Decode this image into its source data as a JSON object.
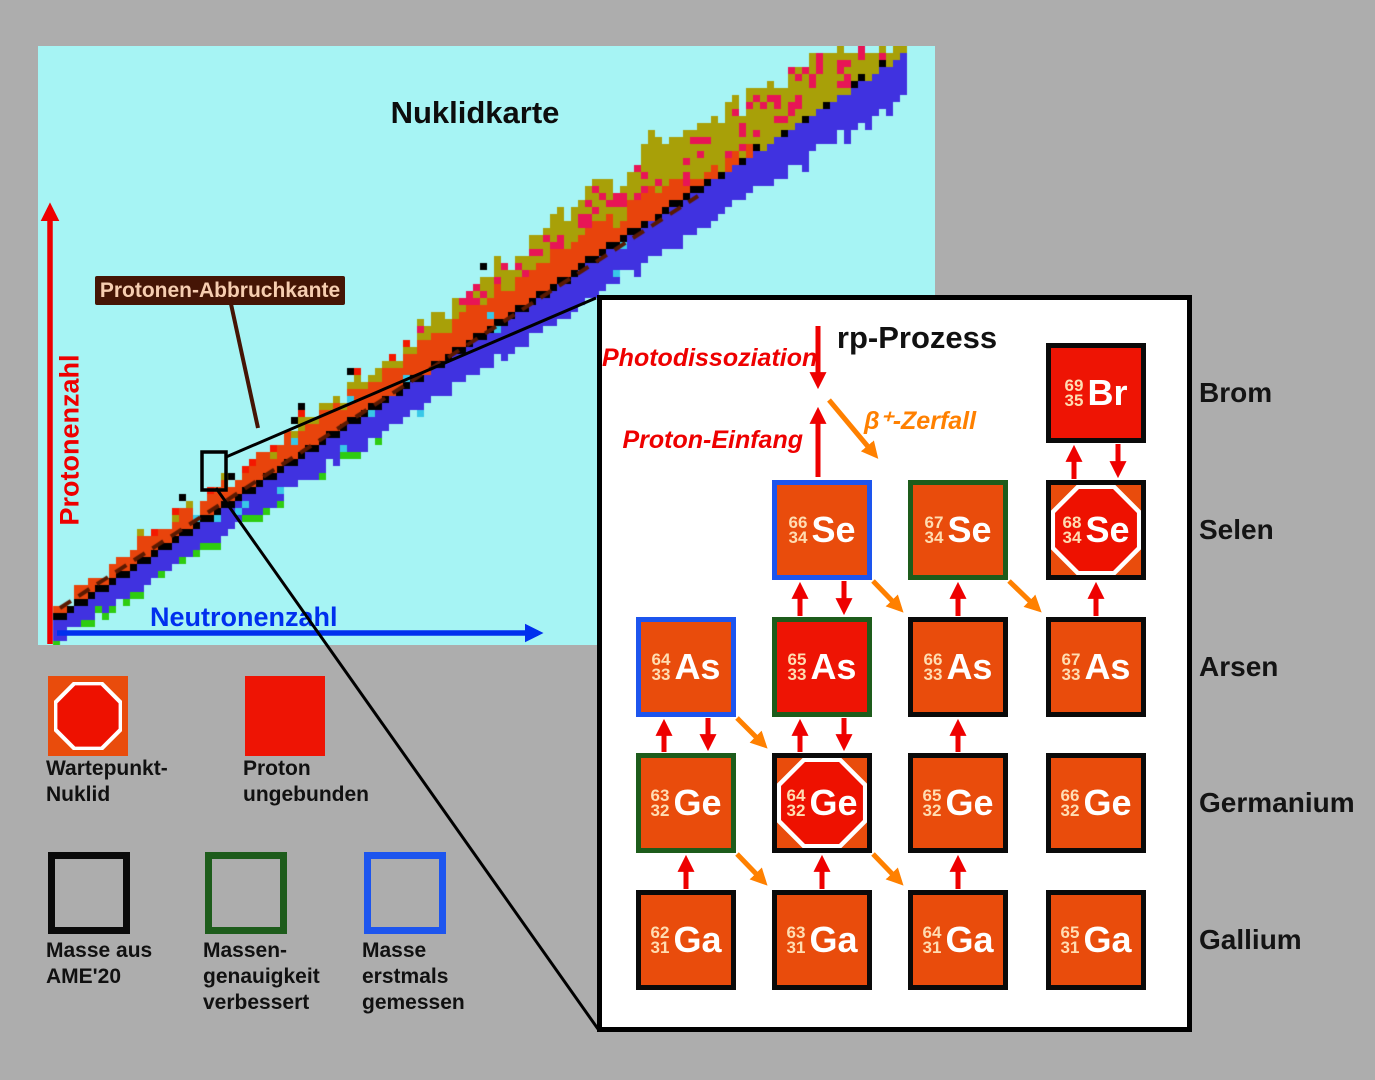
{
  "chart": {
    "title": "Nuklidkarte",
    "y_axis_label": "Protonenzahl",
    "x_axis_label": "Neutronenzahl",
    "drip_label": "Protonen-Abbruchkante",
    "band": {
      "seed": 11,
      "cell": 7,
      "colors": {
        "olive": "#a8a008",
        "orange": "#e8440c",
        "red": "#f41800",
        "crimson": "#e81556",
        "black": "#000000",
        "blue": "#4032e0",
        "green": "#2ecc10",
        "cyan": "#38c8e8"
      },
      "dash_color": "#5a1a02",
      "background": "#a6f4f4"
    },
    "axis_colors": {
      "proton_axis": "#ee0000",
      "neutron_axis": "#0030ee"
    }
  },
  "inset": {
    "title": "rp-Prozess",
    "photodissociation_label": "Photodissoziation",
    "proton_capture_label": "Proton-Einfang",
    "beta_decay_label": "β⁺-Zerfall",
    "arrow_colors": {
      "capture": "#ee0000",
      "beta": "#ff8000"
    },
    "element_rows": [
      "Brom",
      "Selen",
      "Arsen",
      "Germanium",
      "Gallium"
    ],
    "nuclides": [
      {
        "mass": "69",
        "z": "35",
        "symbol": "Br",
        "row": 0,
        "col": 3,
        "fill": "red",
        "border": "black",
        "octagon": false
      },
      {
        "mass": "66",
        "z": "34",
        "symbol": "Se",
        "row": 1,
        "col": 1,
        "fill": "orange",
        "border": "blue",
        "octagon": false
      },
      {
        "mass": "67",
        "z": "34",
        "symbol": "Se",
        "row": 1,
        "col": 2,
        "fill": "orange",
        "border": "green",
        "octagon": false
      },
      {
        "mass": "68",
        "z": "34",
        "symbol": "Se",
        "row": 1,
        "col": 3,
        "fill": "orange",
        "border": "black",
        "octagon": true
      },
      {
        "mass": "64",
        "z": "33",
        "symbol": "As",
        "row": 2,
        "col": 0,
        "fill": "orange",
        "border": "blue",
        "octagon": false
      },
      {
        "mass": "65",
        "z": "33",
        "symbol": "As",
        "row": 2,
        "col": 1,
        "fill": "red",
        "border": "green",
        "octagon": false
      },
      {
        "mass": "66",
        "z": "33",
        "symbol": "As",
        "row": 2,
        "col": 2,
        "fill": "orange",
        "border": "black",
        "octagon": false
      },
      {
        "mass": "67",
        "z": "33",
        "symbol": "As",
        "row": 2,
        "col": 3,
        "fill": "orange",
        "border": "black",
        "octagon": false
      },
      {
        "mass": "63",
        "z": "32",
        "symbol": "Ge",
        "row": 3,
        "col": 0,
        "fill": "orange",
        "border": "green",
        "octagon": false
      },
      {
        "mass": "64",
        "z": "32",
        "symbol": "Ge",
        "row": 3,
        "col": 1,
        "fill": "orange",
        "border": "black",
        "octagon": true
      },
      {
        "mass": "65",
        "z": "32",
        "symbol": "Ge",
        "row": 3,
        "col": 2,
        "fill": "orange",
        "border": "black",
        "octagon": false
      },
      {
        "mass": "66",
        "z": "32",
        "symbol": "Ge",
        "row": 3,
        "col": 3,
        "fill": "orange",
        "border": "black",
        "octagon": false
      },
      {
        "mass": "62",
        "z": "31",
        "symbol": "Ga",
        "row": 4,
        "col": 0,
        "fill": "orange",
        "border": "black",
        "octagon": false
      },
      {
        "mass": "63",
        "z": "31",
        "symbol": "Ga",
        "row": 4,
        "col": 1,
        "fill": "orange",
        "border": "black",
        "octagon": false
      },
      {
        "mass": "64",
        "z": "31",
        "symbol": "Ga",
        "row": 4,
        "col": 2,
        "fill": "orange",
        "border": "black",
        "octagon": false
      },
      {
        "mass": "65",
        "z": "31",
        "symbol": "Ga",
        "row": 4,
        "col": 3,
        "fill": "orange",
        "border": "black",
        "octagon": false
      }
    ],
    "vertical_arrows": [
      {
        "col": 3,
        "gap": 0,
        "kind": "pair"
      },
      {
        "col": 1,
        "gap": 1,
        "kind": "pair"
      },
      {
        "col": 2,
        "gap": 1,
        "kind": "up"
      },
      {
        "col": 3,
        "gap": 1,
        "kind": "up"
      },
      {
        "col": 0,
        "gap": 2,
        "kind": "pair"
      },
      {
        "col": 1,
        "gap": 2,
        "kind": "pair"
      },
      {
        "col": 2,
        "gap": 2,
        "kind": "up"
      },
      {
        "col": 0,
        "gap": 3,
        "kind": "up"
      },
      {
        "col": 1,
        "gap": 3,
        "kind": "up"
      },
      {
        "col": 2,
        "gap": 3,
        "kind": "up"
      }
    ],
    "diagonal_arrows": [
      {
        "row": 1,
        "col": 1
      },
      {
        "row": 1,
        "col": 2
      },
      {
        "row": 2,
        "col": 0
      },
      {
        "row": 3,
        "col": 0
      },
      {
        "row": 3,
        "col": 1
      }
    ]
  },
  "legend_symbols": [
    {
      "type": "waiting-point",
      "label": "Wartepunkt-\nNuklid"
    },
    {
      "type": "proton-unbound",
      "label": "Proton\nungebunden"
    }
  ],
  "legend_borders": [
    {
      "type": "mass-ame20",
      "label": "Masse aus\nAME'20"
    },
    {
      "type": "mass-improved",
      "label": "Massen-\ngenauigkeit\nverbessert"
    },
    {
      "type": "mass-first-measured",
      "label": "Masse\nerstmals\ngemessen"
    }
  ],
  "legend_colors": {
    "waiting_point_bg": "#e94c0c",
    "waiting_point_octagon": "#ee1100",
    "proton_unbound": "#ee1404",
    "ame20_border": "#0a0a0a",
    "improved_border": "#1d5c1b",
    "first_measured_border": "#1d55ee"
  }
}
